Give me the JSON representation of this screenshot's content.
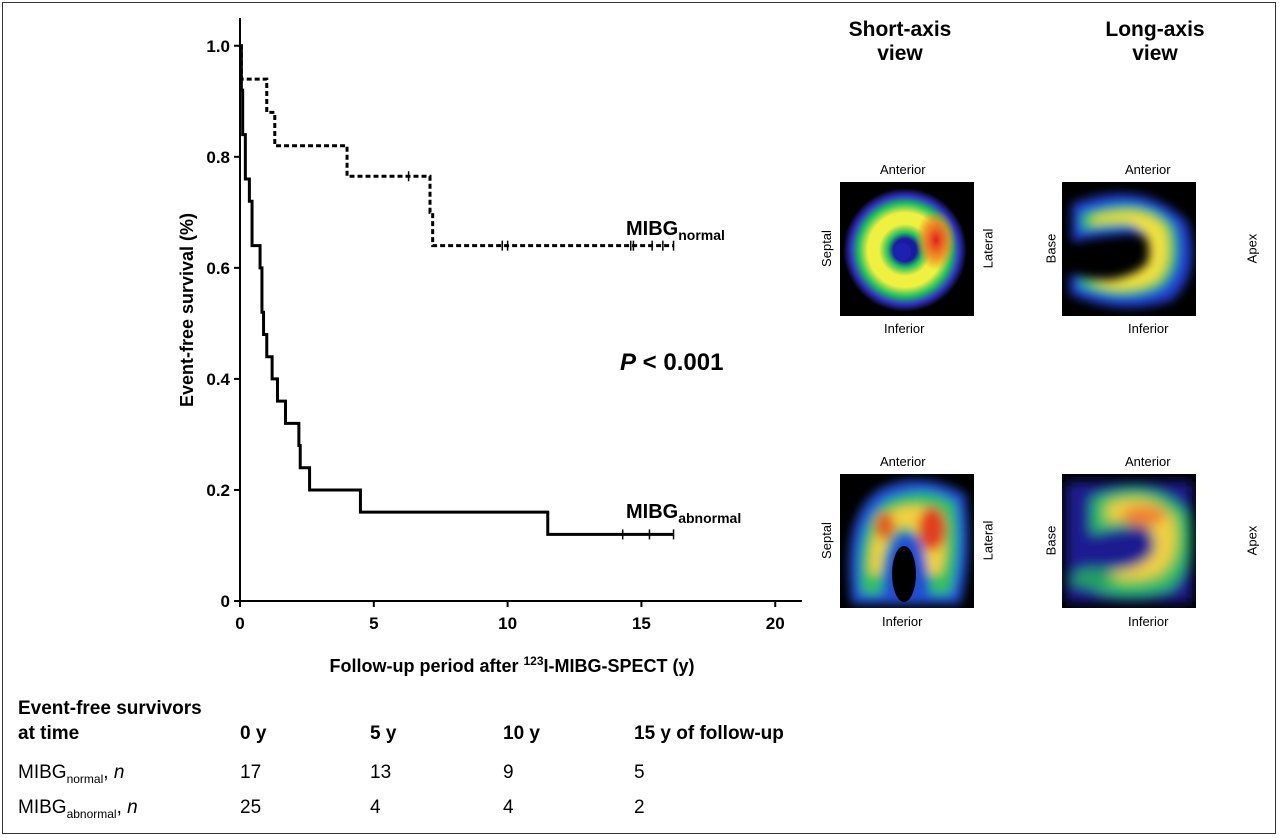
{
  "chart_data": {
    "type": "line",
    "step": true,
    "xlabel_pre": "Follow-up period after ",
    "xlabel_sup": "123",
    "xlabel_post": "I-MIBG-SPECT (y)",
    "ylabel": "Event-free survival (%)",
    "xlim": [
      0,
      21
    ],
    "ylim": [
      0,
      1.05
    ],
    "x_ticks": [
      0,
      5,
      10,
      15,
      20
    ],
    "y_ticks": [
      "0",
      "0.2",
      "0.4",
      "0.6",
      "0.8",
      "1.0"
    ],
    "y_tick_values": [
      0,
      0.2,
      0.4,
      0.6,
      0.8,
      1.0
    ],
    "p_value_italic": "P",
    "p_value_rest": " < 0.001",
    "series": [
      {
        "label_main": "MIBG",
        "label_sub": "normal",
        "style": "dashed",
        "steps": [
          [
            0,
            1.0
          ],
          [
            0.05,
            0.94
          ],
          [
            1.0,
            0.88
          ],
          [
            1.3,
            0.82
          ],
          [
            4.0,
            0.765
          ],
          [
            7.1,
            0.7
          ],
          [
            7.2,
            0.64
          ],
          [
            16.2,
            0.64
          ]
        ],
        "censored": [
          [
            6.3,
            0.765
          ],
          [
            9.8,
            0.64
          ],
          [
            10.0,
            0.64
          ],
          [
            14.6,
            0.64
          ],
          [
            14.7,
            0.64
          ],
          [
            15.4,
            0.64
          ],
          [
            15.8,
            0.64
          ],
          [
            16.2,
            0.64
          ]
        ]
      },
      {
        "label_main": "MIBG",
        "label_sub": "abnormal",
        "style": "solid",
        "steps": [
          [
            0,
            1.0
          ],
          [
            0.05,
            0.92
          ],
          [
            0.1,
            0.84
          ],
          [
            0.2,
            0.76
          ],
          [
            0.35,
            0.72
          ],
          [
            0.45,
            0.64
          ],
          [
            0.75,
            0.6
          ],
          [
            0.82,
            0.52
          ],
          [
            0.88,
            0.48
          ],
          [
            1.0,
            0.44
          ],
          [
            1.2,
            0.4
          ],
          [
            1.4,
            0.36
          ],
          [
            1.7,
            0.32
          ],
          [
            2.2,
            0.28
          ],
          [
            2.25,
            0.24
          ],
          [
            2.6,
            0.2
          ],
          [
            4.5,
            0.16
          ],
          [
            11.5,
            0.12
          ],
          [
            16.2,
            0.12
          ]
        ],
        "censored": [
          [
            14.3,
            0.12
          ],
          [
            15.3,
            0.12
          ],
          [
            16.2,
            0.12
          ]
        ]
      }
    ]
  },
  "views": {
    "short_axis_title": "Short-axis\nview",
    "long_axis_title": "Long-axis\nview",
    "anterior": "Anterior",
    "inferior": "Inferior",
    "septal": "Septal",
    "lateral": "Lateral",
    "base": "Base",
    "apex": "Apex"
  },
  "table": {
    "header_line1": "Event-free survivors",
    "header_line2": "at time",
    "times": [
      "0 y",
      "5 y",
      "10 y",
      "15 y of follow-up"
    ],
    "rows": [
      {
        "label_main": "MIBG",
        "label_sub": "normal",
        "label_suffix": ", ",
        "label_n": "n",
        "values": [
          "17",
          "13",
          "9",
          "5"
        ]
      },
      {
        "label_main": "MIBG",
        "label_sub": "abnormal",
        "label_suffix": ", ",
        "label_n": "n",
        "values": [
          "25",
          "4",
          "4",
          "2"
        ]
      }
    ]
  }
}
